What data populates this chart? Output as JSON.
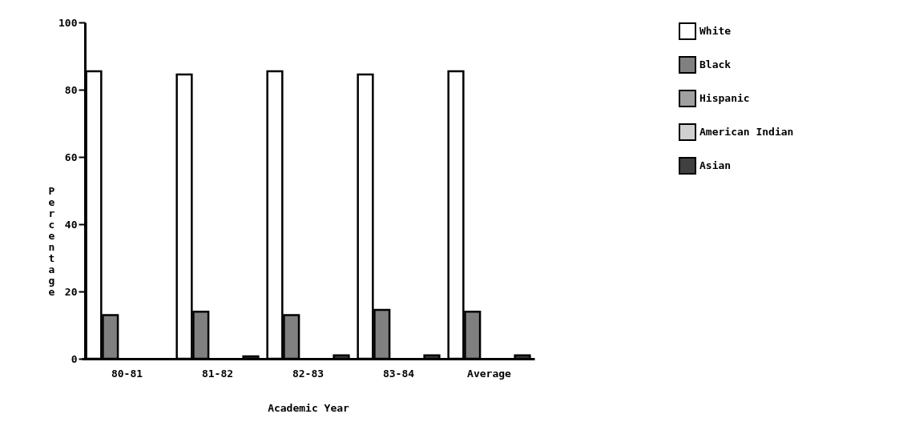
{
  "chart_data": {
    "type": "bar",
    "xlabel": "Academic Year",
    "ylabel": "Percentage",
    "categories": [
      "80-81",
      "81-82",
      "82-83",
      "83-84",
      "Average"
    ],
    "series": [
      {
        "name": "White",
        "color": "#ffffff",
        "values": [
          85.5,
          84.5,
          85.5,
          84.5,
          85.5
        ]
      },
      {
        "name": "Black",
        "color": "#808080",
        "values": [
          13,
          14,
          13,
          14.5,
          14
        ]
      },
      {
        "name": "Hispanic",
        "color": "#a0a0a0",
        "values": [
          0,
          0,
          0,
          0,
          0
        ]
      },
      {
        "name": "American Indian",
        "color": "#d0d0d0",
        "values": [
          0,
          0,
          0,
          0,
          0
        ]
      },
      {
        "name": "Asian",
        "color": "#404040",
        "values": [
          0,
          0.7,
          1,
          1,
          1
        ]
      }
    ],
    "ylim": [
      0,
      100
    ],
    "yticks": [
      0,
      20,
      40,
      60,
      80,
      100
    ],
    "grid": false,
    "legend": "right"
  }
}
